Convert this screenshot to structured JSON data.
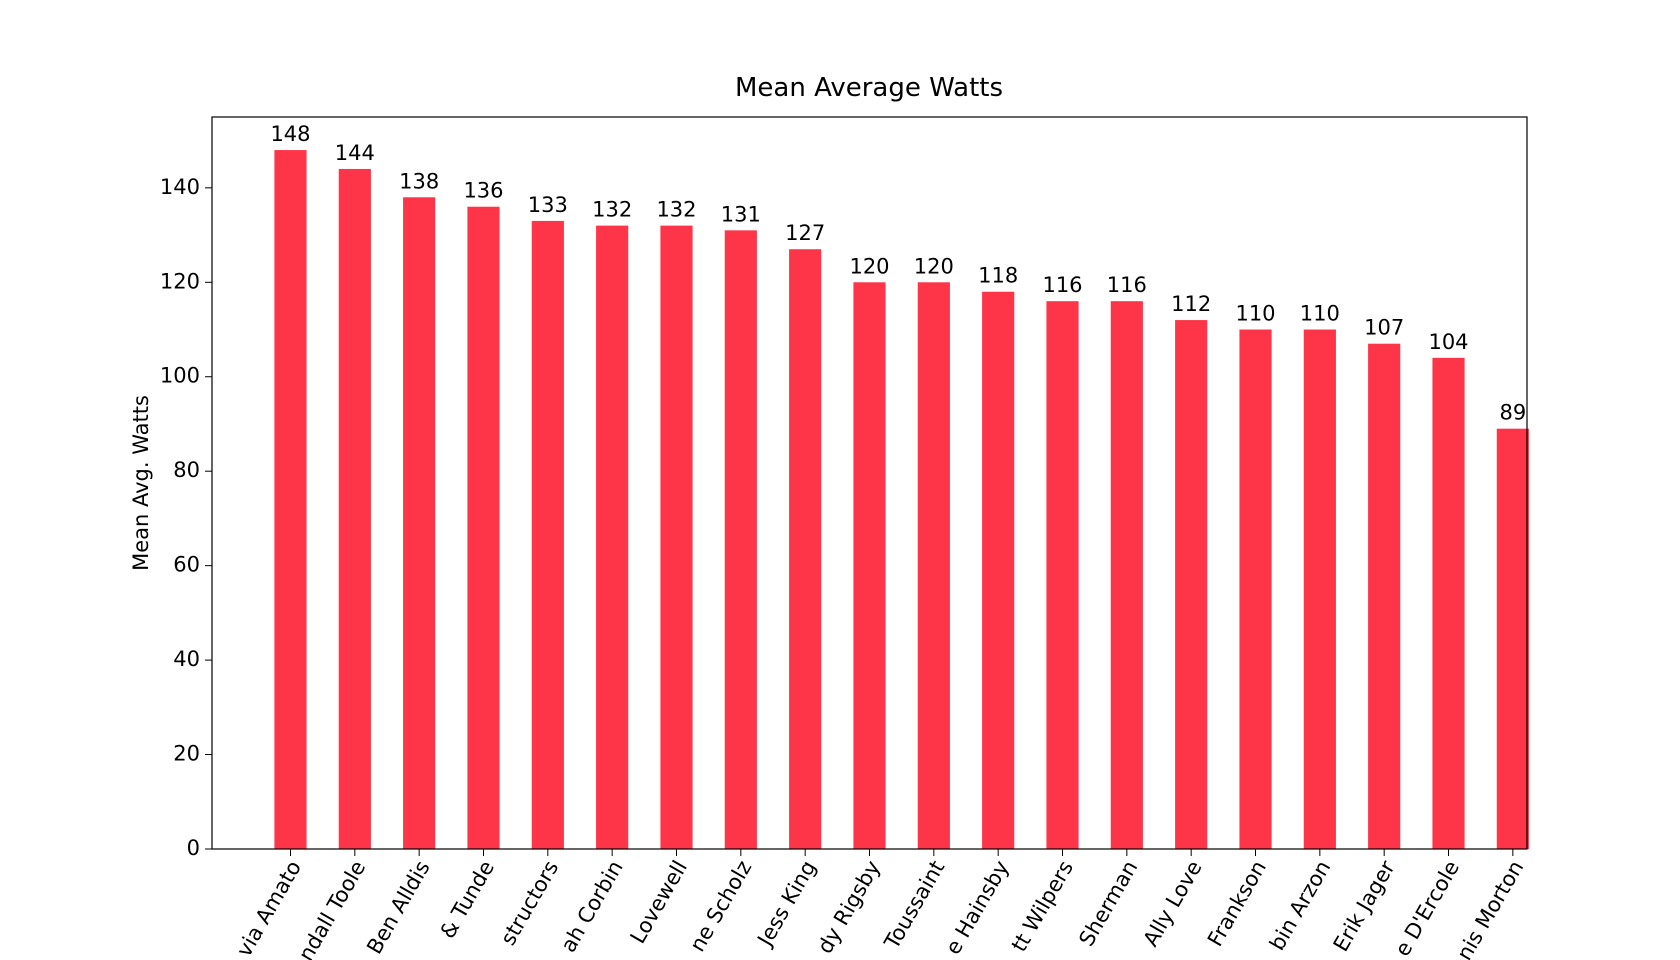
{
  "chart_data": {
    "type": "bar",
    "title": "Mean Average Watts",
    "y_label": "Mean Avg. Watts",
    "categories": [
      "via Amato",
      "ndall Toole",
      "Ben Alldis",
      "& Tunde",
      "structors",
      "ah Corbin",
      "Lovewell",
      "ne Scholz",
      "Jess King",
      "dy Rigsby",
      "Toussaint",
      "e Hainsby",
      "tt Wilpers",
      "Sherman",
      "Ally Love",
      "Frankson",
      "bin Arzon",
      "Erik Jager",
      "e D'Ercole",
      "nis Morton"
    ],
    "values": [
      148,
      144,
      138,
      136,
      133,
      132,
      132,
      131,
      127,
      120,
      120,
      118,
      116,
      116,
      112,
      110,
      110,
      107,
      104,
      89
    ],
    "color": "#fe3448",
    "ylim": [
      0,
      155
    ],
    "yticks": [
      0,
      20,
      40,
      60,
      80,
      100,
      120,
      140
    ],
    "grid": false
  }
}
